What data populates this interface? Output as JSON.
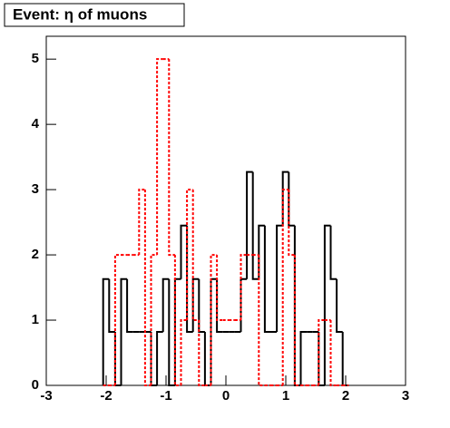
{
  "chart_data": {
    "type": "histogram",
    "title": "Event: η of muons",
    "bins": [
      -2.05,
      -1.95,
      -1.85,
      -1.75,
      -1.65,
      -1.55,
      -1.45,
      -1.35,
      -1.25,
      -1.15,
      -1.05,
      -0.95,
      -0.85,
      -0.75,
      -0.65,
      -0.55,
      -0.45,
      -0.35,
      -0.25,
      -0.15,
      -0.05,
      0.05,
      0.15,
      0.25,
      0.35,
      0.45,
      0.55,
      0.65,
      0.75,
      0.85,
      0.95,
      1.05,
      1.15,
      1.25,
      1.35,
      1.45,
      1.55,
      1.65,
      1.75,
      1.85,
      1.95,
      2.05
    ],
    "series": [
      {
        "color": "#000000",
        "dash": false,
        "values": [
          1.63,
          0.82,
          0,
          1.63,
          0.82,
          0.82,
          0.82,
          0.82,
          0,
          0.82,
          1.63,
          0,
          1.63,
          2.45,
          0.82,
          1.63,
          0.82,
          0,
          1.63,
          0.82,
          0.82,
          0.82,
          0.82,
          1.63,
          3.27,
          1.63,
          2.45,
          0.82,
          0.82,
          2.45,
          3.27,
          2.45,
          0,
          0.82,
          0.82,
          0.82,
          0,
          2.45,
          1.63,
          0.82,
          0
        ]
      },
      {
        "color": "#ff0000",
        "dash": true,
        "values": [
          0,
          0,
          2,
          2,
          2,
          2,
          3,
          0,
          2,
          5,
          5,
          2,
          0,
          1,
          3,
          1,
          0,
          0,
          2,
          1,
          1,
          1,
          1,
          2,
          2,
          2,
          0,
          0,
          0,
          0,
          3,
          2,
          0,
          0,
          0,
          0,
          1,
          1,
          0,
          0,
          0
        ]
      }
    ],
    "xlim": [
      -3,
      3
    ],
    "ylim": [
      0,
      5.35
    ],
    "xticks": [
      -3,
      -2,
      -1,
      0,
      1,
      2,
      3
    ],
    "yticks": [
      0,
      1,
      2,
      3,
      4,
      5
    ]
  }
}
